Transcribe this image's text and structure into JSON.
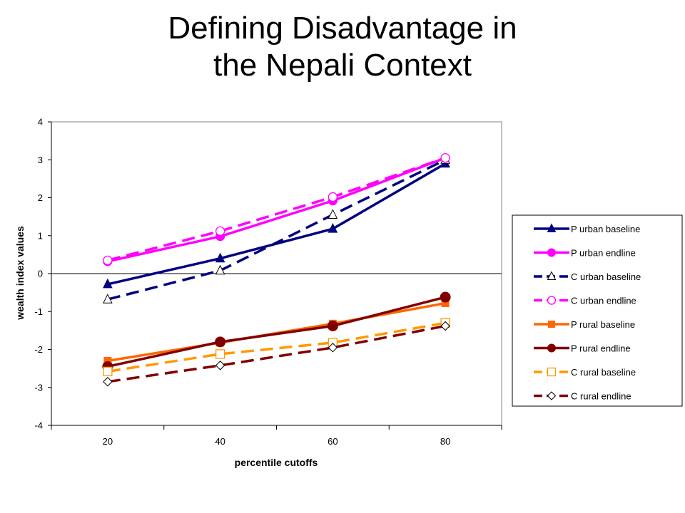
{
  "slide": {
    "title_line1": "Defining Disadvantage in",
    "title_line2": "the Nepali Context"
  },
  "chart_data": {
    "type": "line",
    "xlabel": "percentile cutoffs",
    "ylabel": "wealth index values",
    "x": [
      20,
      40,
      60,
      80
    ],
    "xlim": [
      10,
      90
    ],
    "ylim": [
      -4,
      4
    ],
    "yticks": [
      4,
      3,
      2,
      1,
      0,
      -1,
      -2,
      -3,
      -4
    ],
    "grid": false,
    "legend_position": "right",
    "series": [
      {
        "name": "P urban baseline",
        "values": [
          -0.28,
          0.4,
          1.18,
          2.9
        ],
        "color": "#000080",
        "dash": "solid",
        "marker": "triangle-filled"
      },
      {
        "name": "P urban endline",
        "values": [
          0.32,
          0.98,
          1.92,
          3.05
        ],
        "color": "#FF00FF",
        "dash": "solid",
        "marker": "circle-filled"
      },
      {
        "name": "C urban baseline",
        "values": [
          -0.68,
          0.08,
          1.55,
          3.0
        ],
        "color": "#000080",
        "dash": "dashed",
        "marker": "triangle-open"
      },
      {
        "name": "C urban endline",
        "values": [
          0.35,
          1.12,
          2.02,
          3.05
        ],
        "color": "#FF00FF",
        "dash": "dashed",
        "marker": "circle-open"
      },
      {
        "name": "P rural baseline",
        "values": [
          -2.3,
          -1.82,
          -1.32,
          -0.78
        ],
        "color": "#FF6600",
        "dash": "solid",
        "marker": "square-filled"
      },
      {
        "name": "P rural endline",
        "values": [
          -2.45,
          -1.8,
          -1.38,
          -0.62
        ],
        "color": "#800000",
        "dash": "solid",
        "marker": "circle-filled"
      },
      {
        "name": "C rural baseline",
        "values": [
          -2.58,
          -2.12,
          -1.82,
          -1.3
        ],
        "color": "#FF9900",
        "dash": "dashed",
        "marker": "square-open"
      },
      {
        "name": "C rural endline",
        "values": [
          -2.85,
          -2.42,
          -1.95,
          -1.38
        ],
        "color": "#800000",
        "dash": "dashed",
        "marker": "diamond-open"
      }
    ]
  }
}
